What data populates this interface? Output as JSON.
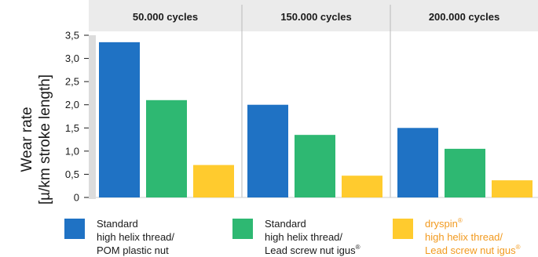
{
  "chart_data": {
    "type": "bar",
    "ylabel_line1": "Wear rate",
    "ylabel_line2": "[µ/km stroke length]",
    "ylim": [
      0,
      3.5
    ],
    "yticks": [
      "0",
      "0,5",
      "1,0",
      "1,5",
      "2,0",
      "2,5",
      "3,0",
      "3,5"
    ],
    "grid": "vertical separators between groups",
    "categories": [
      "50.000 cycles",
      "150.000 cycles",
      "200.000 cycles"
    ],
    "series": [
      {
        "name": "Standard high helix thread/ POM plastic nut",
        "color": "#1f72c4",
        "values": [
          3.35,
          2.0,
          1.5
        ]
      },
      {
        "name": "Standard high helix thread/ Lead screw nut igus®",
        "color": "#2eb872",
        "values": [
          2.1,
          1.35,
          1.05
        ]
      },
      {
        "name": "dryspin® high helix thread/ Lead screw nut igus®",
        "color": "#ffcb2e",
        "values": [
          0.7,
          0.47,
          0.37
        ]
      }
    ]
  },
  "legend": [
    {
      "line1": "Standard",
      "line2": "high helix thread/",
      "line3": "POM plastic nut"
    },
    {
      "line1": "Standard",
      "line2": "high helix thread/",
      "line3": "Lead screw nut igus",
      "sup3": "®"
    },
    {
      "line1": "dryspin",
      "sup1": "®",
      "line2": "high helix thread/",
      "line3": "Lead screw nut igus",
      "sup3": "®"
    }
  ]
}
